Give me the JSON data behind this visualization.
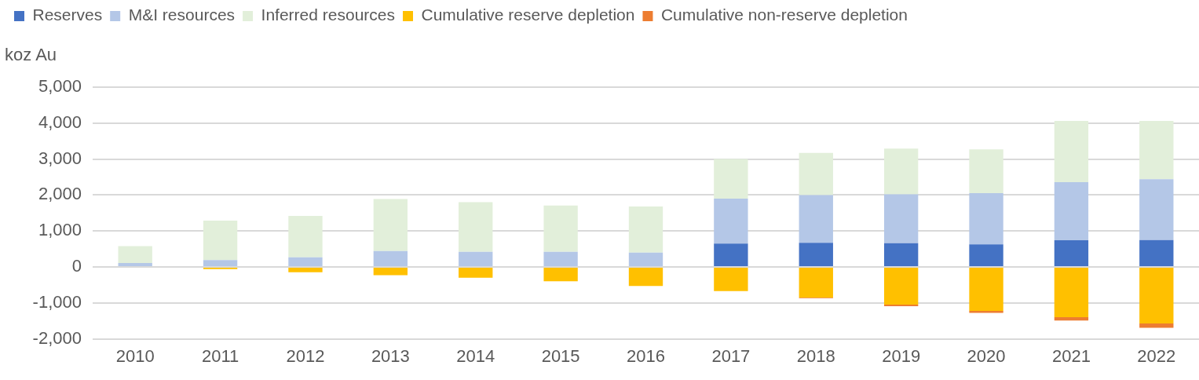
{
  "chart_data": {
    "type": "bar",
    "stacked": true,
    "ylabel": "koz Au",
    "categories": [
      "2010",
      "2011",
      "2012",
      "2013",
      "2014",
      "2015",
      "2016",
      "2017",
      "2018",
      "2019",
      "2020",
      "2021",
      "2022"
    ],
    "series": [
      {
        "name": "Reserves",
        "color": "#4472c4",
        "values": [
          0,
          0,
          0,
          0,
          0,
          0,
          0,
          650,
          670,
          660,
          630,
          740,
          750
        ]
      },
      {
        "name": "M&I resources",
        "color": "#b4c7e7",
        "values": [
          110,
          190,
          270,
          440,
          420,
          420,
          400,
          1250,
          1330,
          1360,
          1420,
          1620,
          1690
        ]
      },
      {
        "name": "Inferred resources",
        "color": "#e2efda",
        "values": [
          470,
          1100,
          1150,
          1450,
          1380,
          1290,
          1280,
          1100,
          1170,
          1270,
          1220,
          1700,
          1620
        ]
      },
      {
        "name": "Cumulative reserve depletion",
        "color": "#ffc000",
        "values": [
          0,
          -60,
          -150,
          -230,
          -300,
          -400,
          -530,
          -670,
          -850,
          -1050,
          -1220,
          -1400,
          -1570
        ]
      },
      {
        "name": "Cumulative non-reserve depletion",
        "color": "#ed7d31",
        "values": [
          0,
          0,
          0,
          0,
          0,
          0,
          0,
          0,
          -20,
          -40,
          -60,
          -90,
          -120
        ]
      }
    ],
    "ylim": [
      -2000,
      5000
    ],
    "yticks": [
      {
        "value": -2000,
        "label": "-2,000"
      },
      {
        "value": -1000,
        "label": "-1,000"
      },
      0,
      {
        "value": 1000,
        "label": "1,000"
      },
      {
        "value": 2000,
        "label": "2,000"
      },
      {
        "value": 3000,
        "label": "3,000"
      },
      {
        "value": 4000,
        "label": "4,000"
      },
      {
        "value": 5000,
        "label": "5,000"
      }
    ],
    "grid": "y",
    "legend": "top"
  }
}
